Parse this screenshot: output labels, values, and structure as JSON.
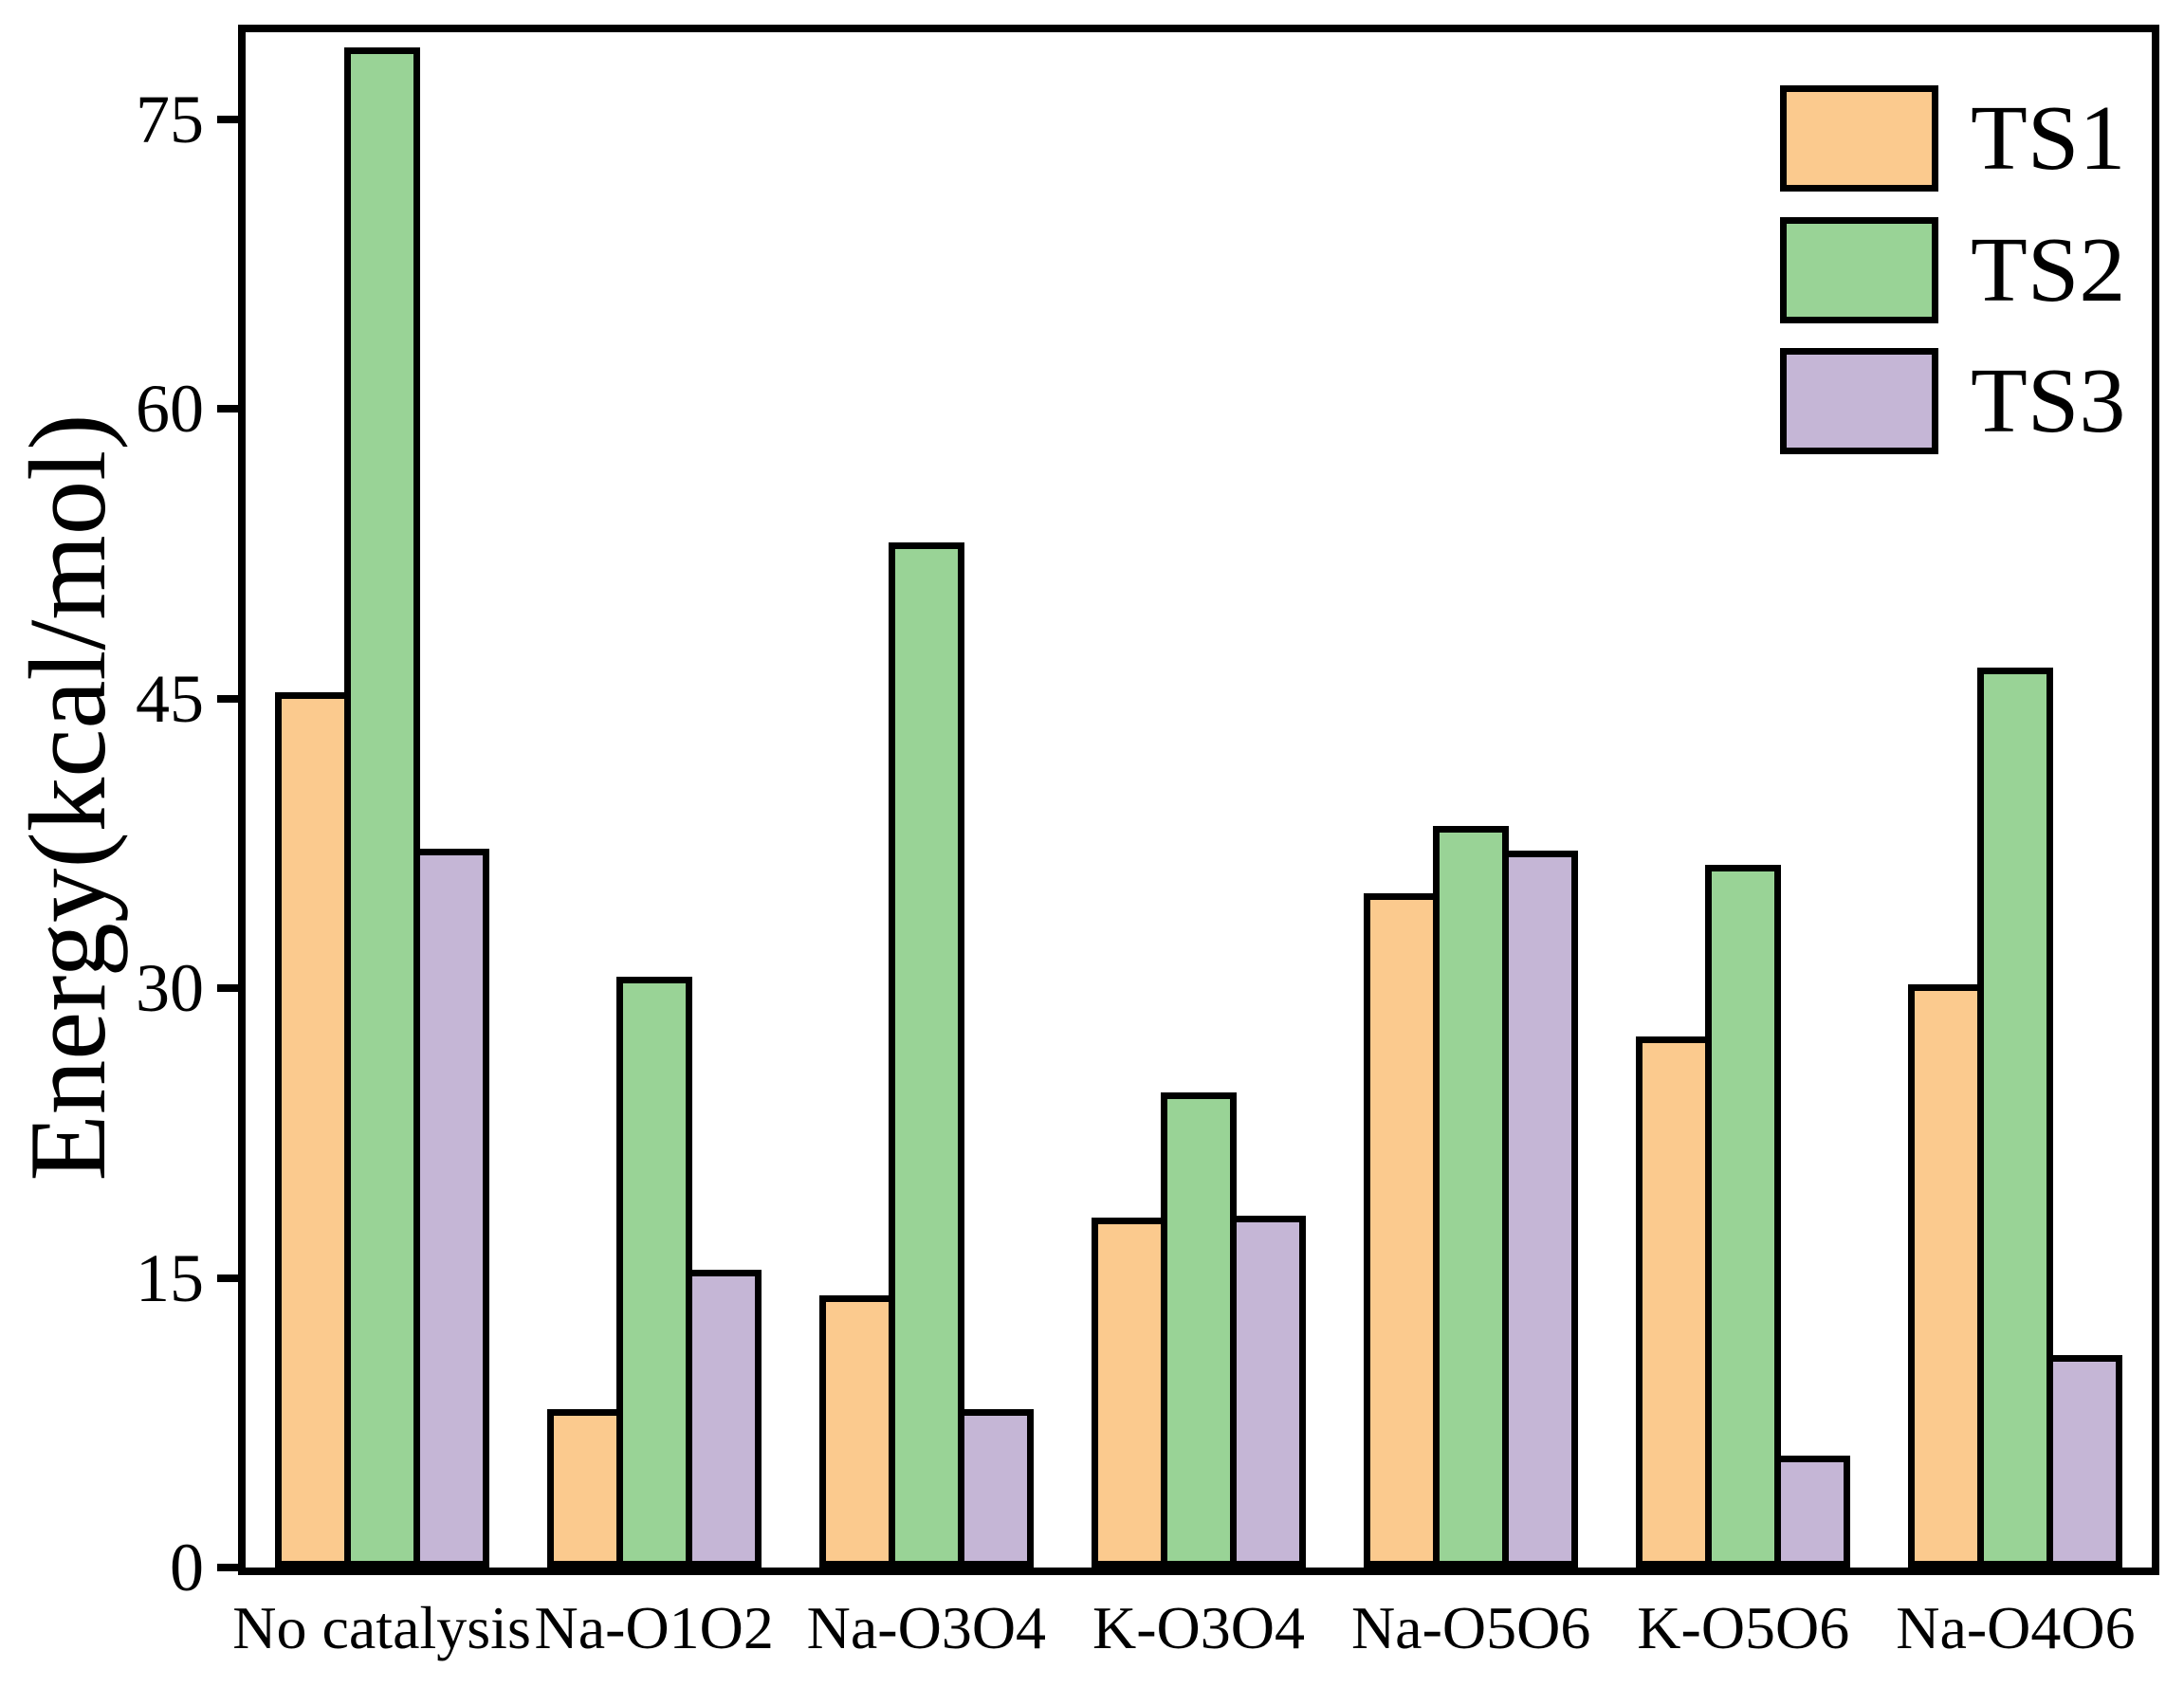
{
  "chart_data": {
    "type": "bar",
    "title": "",
    "categories": [
      "No catalysis",
      "Na-O1O2",
      "Na-O3O4",
      "K-O3O4",
      "Na-O5O6",
      "K-O5O6",
      "Na-O4O6"
    ],
    "series": [
      {
        "name": "TS1",
        "color": "#FBCA8E",
        "values": [
          45.3,
          8.2,
          14.1,
          18.1,
          34.9,
          27.5,
          30.2
        ]
      },
      {
        "name": "TS2",
        "color": "#99D396",
        "values": [
          78.7,
          30.6,
          53.1,
          24.6,
          38.4,
          36.4,
          46.6
        ]
      },
      {
        "name": "TS3",
        "color": "#C5B6D6",
        "values": [
          37.2,
          15.4,
          8.2,
          18.2,
          37.1,
          5.8,
          11.0
        ]
      }
    ],
    "xlabel": "",
    "ylabel": "Energy(kcal/mol)",
    "ylim": [
      0,
      79.5
    ],
    "yticks": [
      0,
      15,
      30,
      45,
      60,
      75
    ],
    "ytick_labels": [
      "0",
      "15",
      "30",
      "45",
      "60",
      "75"
    ],
    "grid": false,
    "legend_position": "top-right",
    "bar_edge_color": "#000000",
    "axis_color": "#000000"
  }
}
